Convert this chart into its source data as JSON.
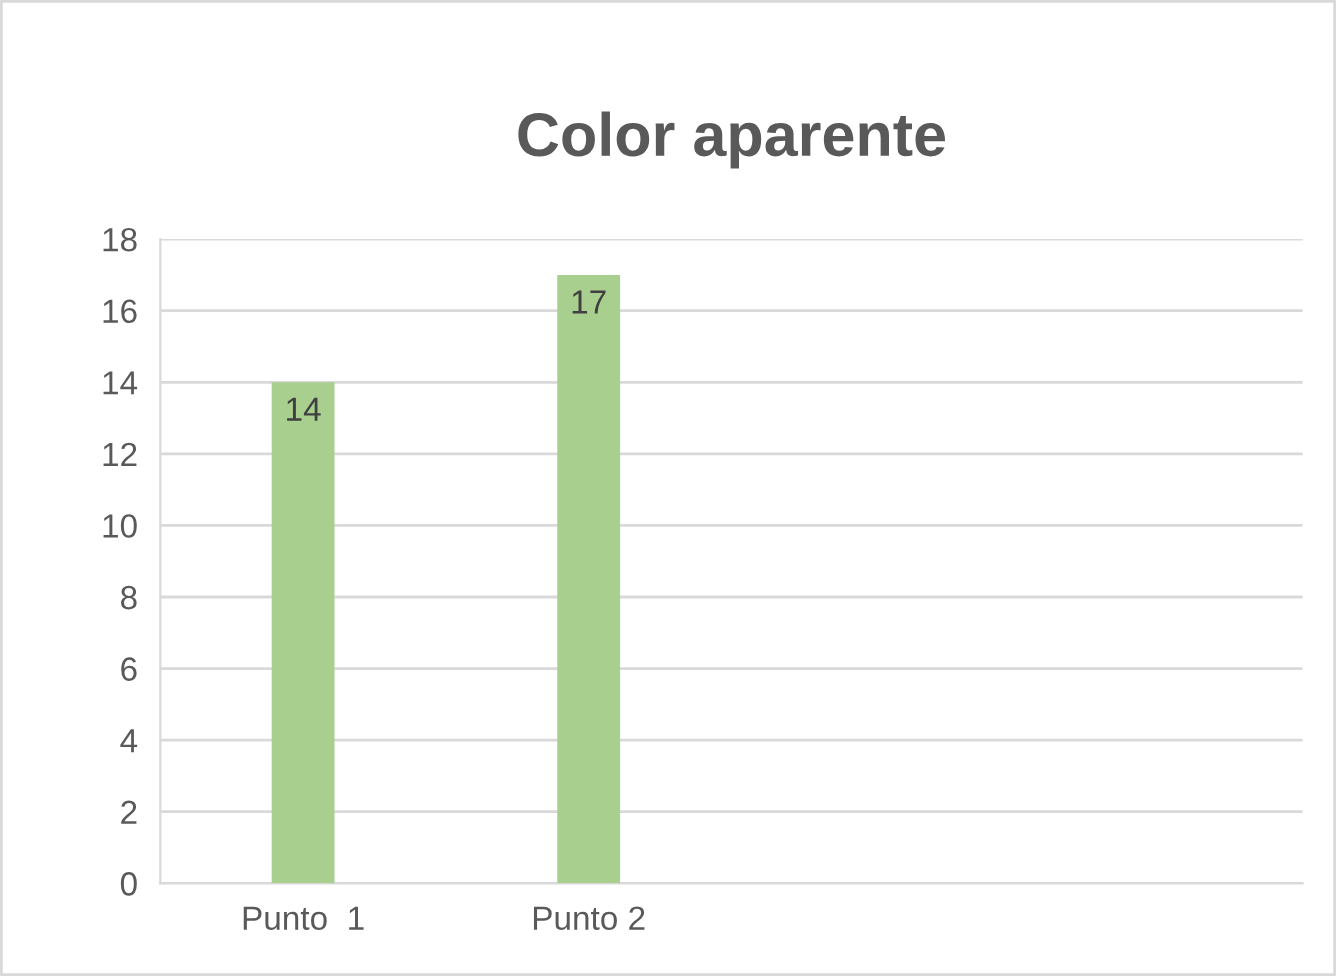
{
  "chart_data": {
    "type": "bar",
    "title": "Color aparente",
    "categories": [
      "Punto  1",
      "Punto 2",
      null,
      null
    ],
    "values": [
      14,
      17,
      null,
      null
    ],
    "color": "#a9cf8f",
    "ylim": [
      0,
      18
    ],
    "yticks": [
      0,
      2,
      4,
      6,
      8,
      10,
      12,
      14,
      16,
      18
    ],
    "grid": "y",
    "data_labels": true
  }
}
